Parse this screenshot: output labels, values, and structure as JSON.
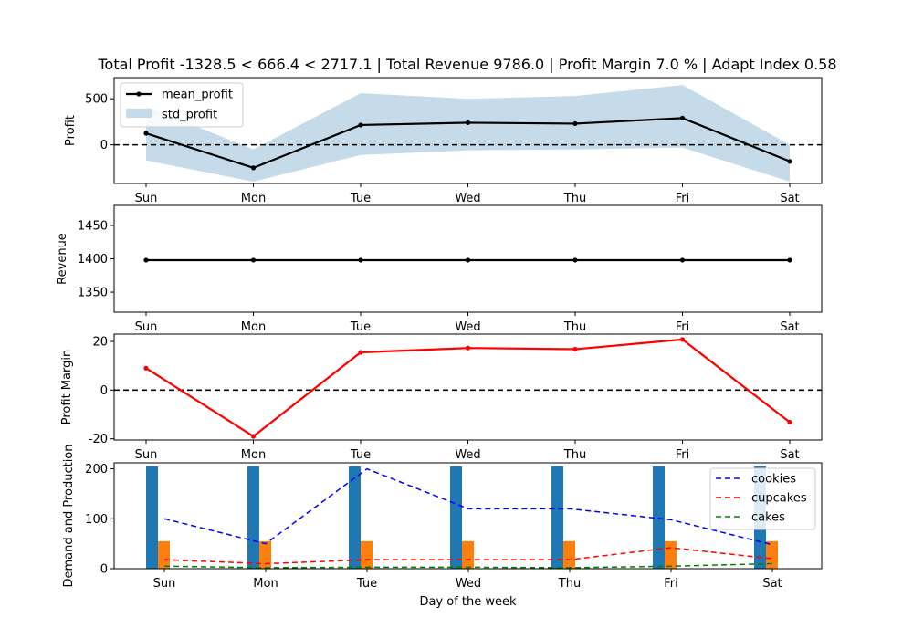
{
  "title": "Total Profit -1328.5 < 666.4 < 2717.1 | Total Revenue 9786.0 | Profit Margin 7.0 % | Adapt Index 0.58",
  "chart_data": [
    {
      "type": "line",
      "ylabel": "Profit",
      "categories": [
        "Sun",
        "Mon",
        "Tue",
        "Wed",
        "Thu",
        "Fri",
        "Sat"
      ],
      "ylim": [
        -420,
        730
      ],
      "yticks": [
        0,
        500
      ],
      "zero_line": true,
      "series": [
        {
          "name": "mean_profit",
          "values": [
            125,
            -250,
            215,
            240,
            230,
            290,
            -180
          ],
          "color": "#000000"
        }
      ],
      "band": {
        "name": "std_profit",
        "lower": [
          -170,
          -400,
          -110,
          -60,
          -50,
          -30,
          -400
        ],
        "upper": [
          420,
          -50,
          560,
          500,
          530,
          650,
          0
        ],
        "color": "#c5dbea"
      },
      "legend": "upper-left"
    },
    {
      "type": "line",
      "ylabel": "Revenue",
      "categories": [
        "Sun",
        "Mon",
        "Tue",
        "Wed",
        "Thu",
        "Fri",
        "Sat"
      ],
      "ylim": [
        1320,
        1480
      ],
      "yticks": [
        1350,
        1400,
        1450
      ],
      "series": [
        {
          "values": [
            1398,
            1398,
            1398,
            1398,
            1398,
            1398,
            1398
          ],
          "color": "#000000"
        }
      ]
    },
    {
      "type": "line",
      "ylabel": "Profit Margin",
      "categories": [
        "Sun",
        "Mon",
        "Tue",
        "Wed",
        "Thu",
        "Fri",
        "Sat"
      ],
      "ylim": [
        -20.5,
        23
      ],
      "yticks": [
        -20,
        0,
        20
      ],
      "zero_line": true,
      "series": [
        {
          "values": [
            9,
            -19,
            15.5,
            17.3,
            16.8,
            20.8,
            -13.2
          ],
          "color": "#ff0000"
        }
      ]
    },
    {
      "type": "bar",
      "ylabel": "Demand and Production",
      "xlabel": "Day of the week",
      "categories": [
        "Sun",
        "Mon",
        "Tue",
        "Wed",
        "Thu",
        "Fri",
        "Sat"
      ],
      "ylim": [
        0,
        212
      ],
      "yticks": [
        0,
        100,
        200
      ],
      "bars": [
        {
          "values": [
            205,
            205,
            205,
            205,
            205,
            205,
            205
          ],
          "color": "#1f77b4"
        },
        {
          "values": [
            55,
            55,
            55,
            55,
            55,
            55,
            55
          ],
          "color": "#ff7f0e"
        }
      ],
      "series": [
        {
          "name": "cookies",
          "values": [
            100,
            50,
            200,
            120,
            120,
            98,
            48
          ],
          "color": "#0000ff"
        },
        {
          "name": "cupcakes",
          "values": [
            18,
            10,
            18,
            18,
            18,
            42,
            20
          ],
          "color": "#ff0000"
        },
        {
          "name": "cakes",
          "values": [
            5,
            2,
            3,
            3,
            2,
            5,
            10
          ],
          "color": "#008000"
        }
      ],
      "legend": "upper-right"
    }
  ]
}
